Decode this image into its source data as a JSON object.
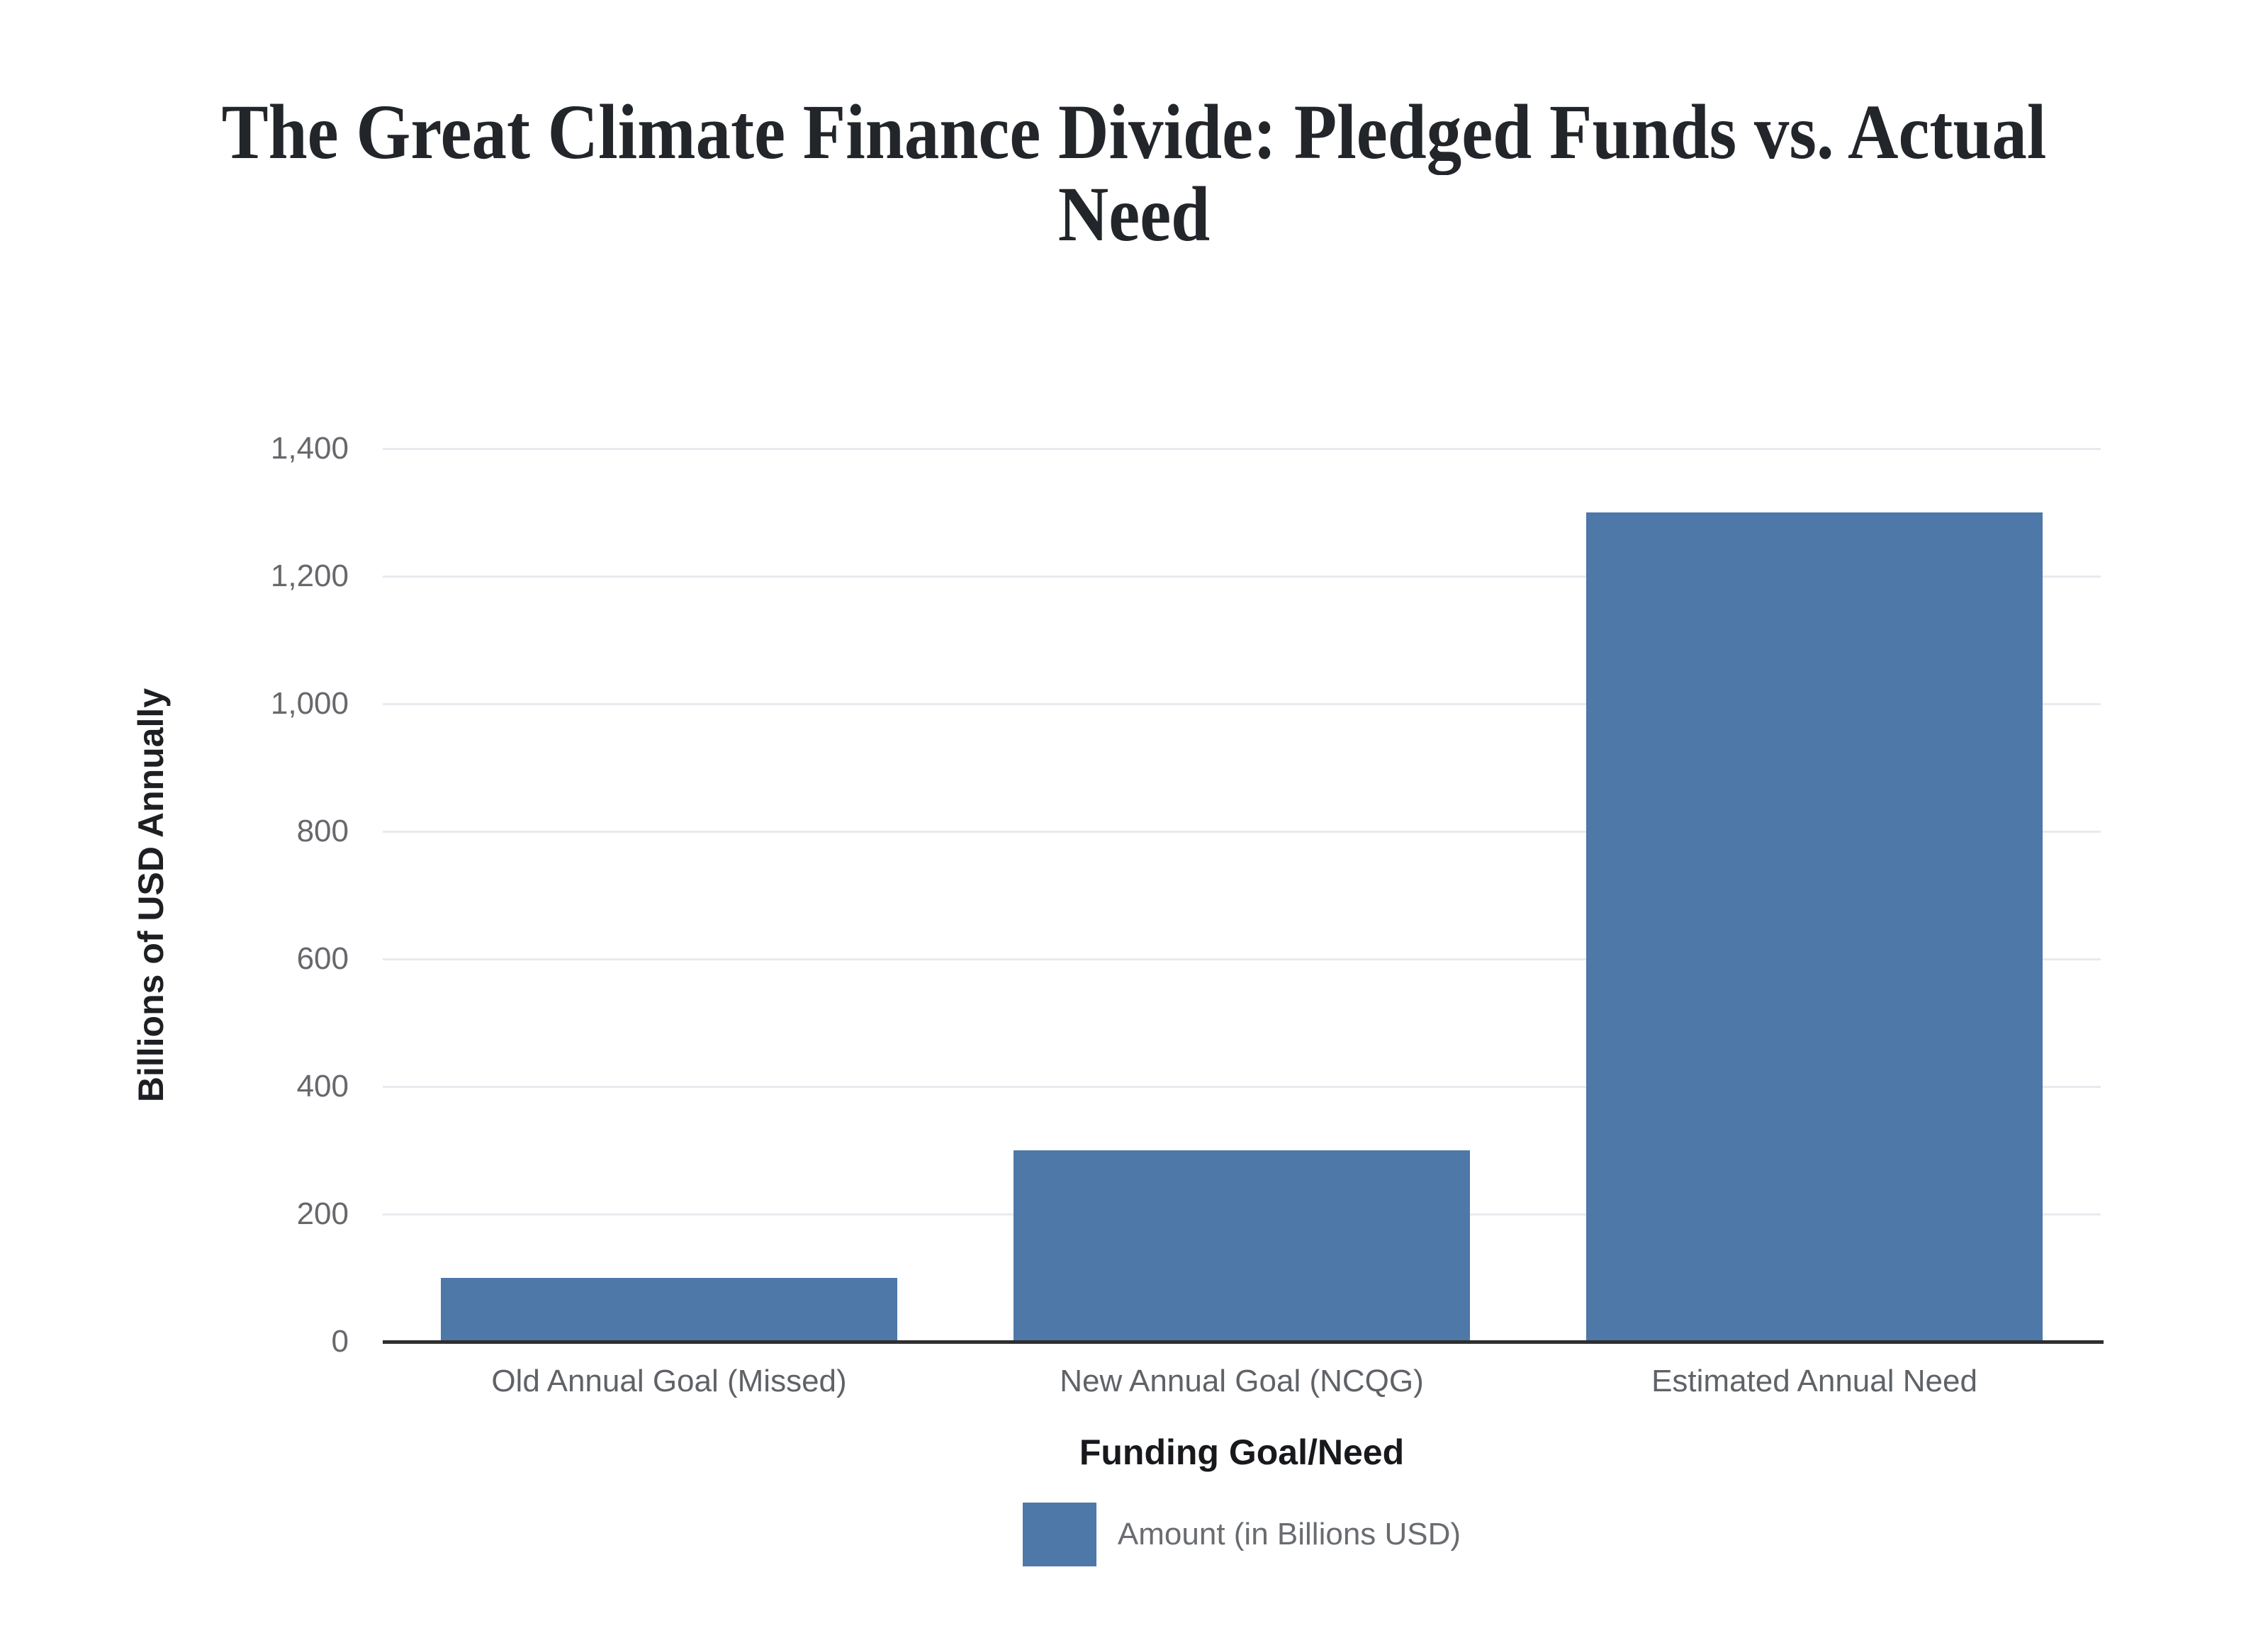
{
  "page": {
    "background": "#ffffff"
  },
  "title": {
    "text": "The Great Climate Finance Divide: Pledged Funds vs. Actual Need",
    "lines": [
      "The Great Climate Finance Divide: Pledged Funds vs. Actual",
      "Need"
    ]
  },
  "chart_data": {
    "type": "bar",
    "title": "The Great Climate Finance Divide: Pledged Funds vs. Actual Need",
    "categories": [
      "Old Annual Goal (Missed)",
      "New Annual Goal (NCQG)",
      "Estimated Annual Need"
    ],
    "series": [
      {
        "name": "Amount (in Billions USD)",
        "values": [
          100,
          300,
          1300
        ],
        "color": "#4d78a8"
      }
    ],
    "xlabel": "Funding Goal/Need",
    "ylabel": "Billions of USD Annually",
    "ylim": [
      0,
      1400
    ],
    "ytick_step": 200,
    "ytick_labels": [
      "0",
      "200",
      "400",
      "600",
      "800",
      "1,000",
      "1,200",
      "1,400"
    ],
    "grid": true,
    "legend_position": "bottom"
  },
  "legend": {
    "label": "Amount (in Billions USD)",
    "swatch_color": "#4d78a8"
  },
  "colors": {
    "bar": "#4d78a8",
    "gridline": "#e9eaef",
    "axis_line": "#2f2f2f",
    "tick_text": "#66686c",
    "category_text": "#5f6267",
    "axis_title_text": "#17191c",
    "title_text": "#22252a",
    "legend_text": "#696c71",
    "background": "#ffffff"
  }
}
